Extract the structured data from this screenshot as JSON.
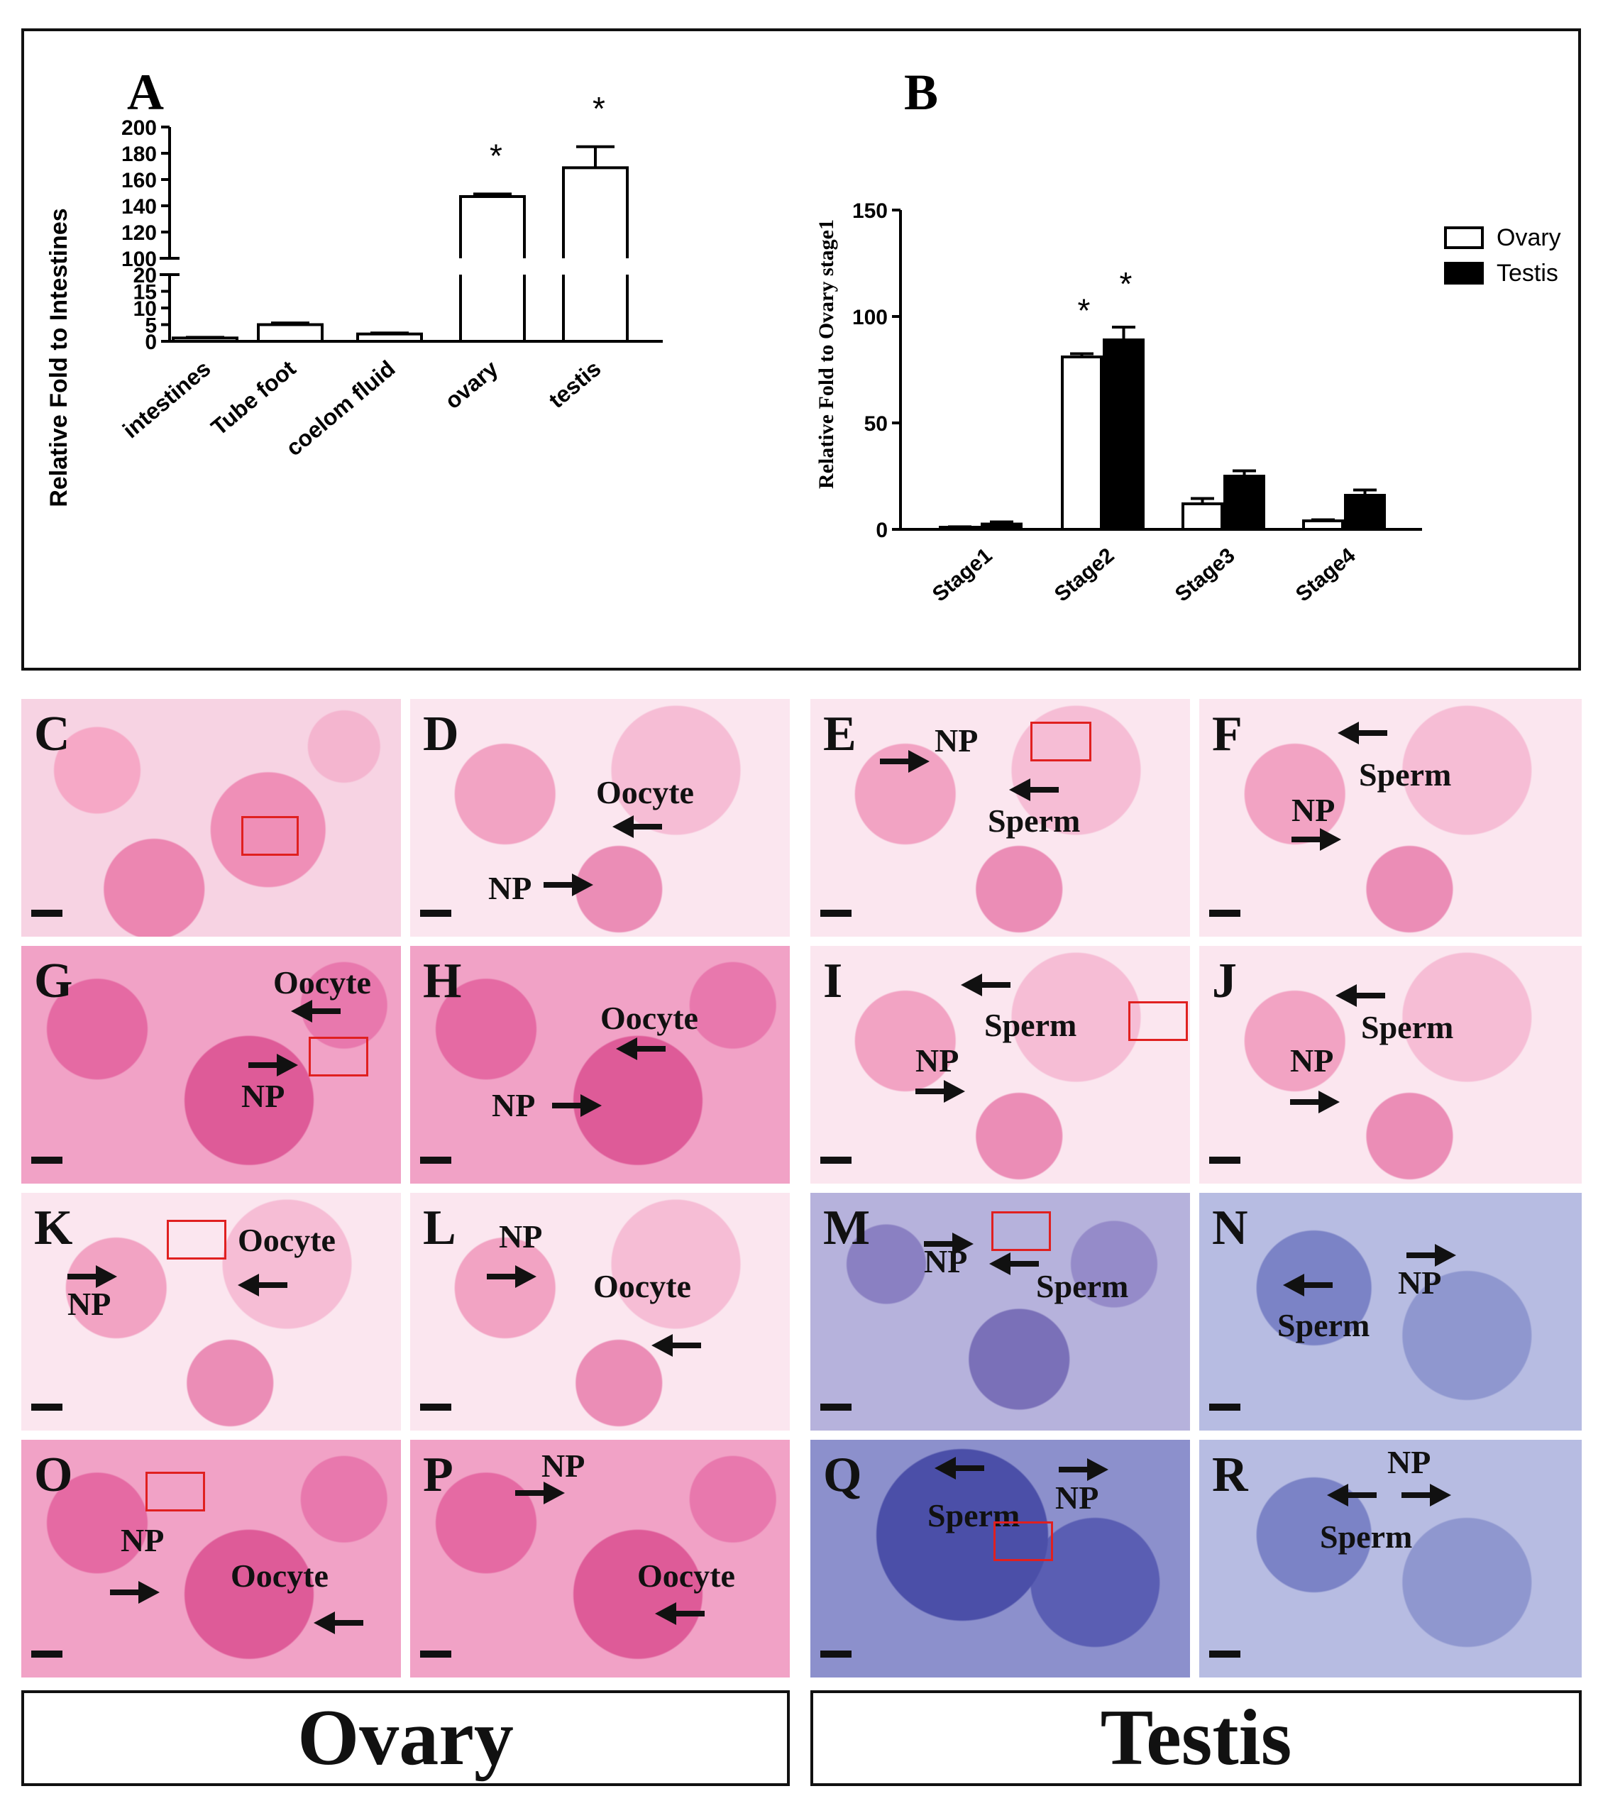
{
  "chart_data": [
    {
      "panel_label": "A",
      "type": "bar",
      "categories": [
        "intestines",
        "Tube foot",
        "coelom fluid",
        "ovary",
        "testis"
      ],
      "values": [
        1,
        5,
        2.2,
        147,
        169
      ],
      "errors": [
        0.2,
        0.5,
        0.3,
        2,
        16
      ],
      "significance": [
        "",
        "",
        "",
        "*",
        "*"
      ],
      "ylabel": "Relative Fold to Intestines",
      "y_axis_broken": true,
      "y_lower_ticks": [
        "0",
        "5",
        "10",
        "15",
        "20"
      ],
      "y_upper_ticks": [
        "100",
        "120",
        "140",
        "160",
        "180",
        "200"
      ],
      "ylim_lower": [
        0,
        20
      ],
      "ylim_upper": [
        100,
        200
      ],
      "bar_color": "#ffffff"
    },
    {
      "panel_label": "B",
      "type": "bar",
      "categories": [
        "Stage1",
        "Stage2",
        "Stage3",
        "Stage4"
      ],
      "series": [
        {
          "name": "Ovary",
          "values": [
            1,
            81,
            12,
            4
          ],
          "errors": [
            0.2,
            1.5,
            2.5,
            0.5
          ],
          "significance": [
            "",
            "*",
            "",
            ""
          ],
          "color": "#ffffff"
        },
        {
          "name": "Testis",
          "values": [
            2.5,
            89,
            25,
            16
          ],
          "errors": [
            1,
            6,
            2.5,
            2.5
          ],
          "significance": [
            "",
            "*",
            "",
            ""
          ],
          "color": "#000000"
        }
      ],
      "ylabel": "Relative Fold to Ovary stage1",
      "y_ticks": [
        "0",
        "50",
        "100",
        "150"
      ],
      "ylim": [
        0,
        150
      ],
      "legend_position": "top-right"
    }
  ],
  "micrographs": [
    {
      "label": "C",
      "annotations": []
    },
    {
      "label": "D",
      "annotations": [
        "Oocyte",
        "NP"
      ]
    },
    {
      "label": "E",
      "annotations": [
        "NP",
        "Sperm"
      ]
    },
    {
      "label": "F",
      "annotations": [
        "Sperm",
        "NP"
      ]
    },
    {
      "label": "G",
      "annotations": [
        "Oocyte",
        "NP"
      ]
    },
    {
      "label": "H",
      "annotations": [
        "Oocyte",
        "NP"
      ]
    },
    {
      "label": "I",
      "annotations": [
        "Sperm",
        "NP"
      ]
    },
    {
      "label": "J",
      "annotations": [
        "Sperm",
        "NP"
      ]
    },
    {
      "label": "K",
      "annotations": [
        "Oocyte",
        "NP"
      ]
    },
    {
      "label": "L",
      "annotations": [
        "NP",
        "Oocyte"
      ]
    },
    {
      "label": "M",
      "annotations": [
        "NP",
        "Sperm"
      ]
    },
    {
      "label": "N",
      "annotations": [
        "NP",
        "Sperm"
      ]
    },
    {
      "label": "O",
      "annotations": [
        "NP",
        "Oocyte"
      ]
    },
    {
      "label": "P",
      "annotations": [
        "NP",
        "Oocyte"
      ]
    },
    {
      "label": "Q",
      "annotations": [
        "Sperm",
        "NP"
      ]
    },
    {
      "label": "R",
      "annotations": [
        "NP",
        "Sperm"
      ]
    }
  ],
  "footer": {
    "left": "Ovary",
    "right": "Testis"
  }
}
